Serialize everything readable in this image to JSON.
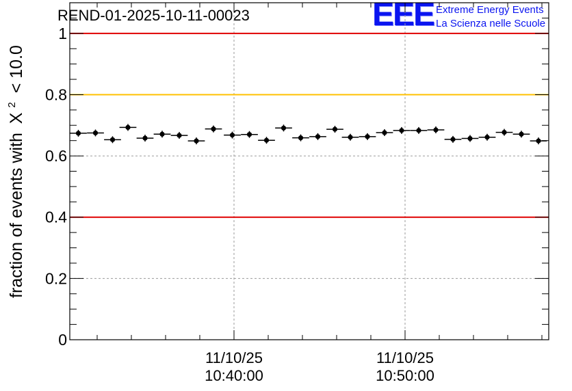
{
  "chart_data": {
    "type": "scatter",
    "title": "REND-01-2025-10-11-00023",
    "ylabel_prefix": "fraction of events with",
    "ylabel_symbol": "X",
    "ylabel_sup": "2",
    "ylabel_suffix": "< 10.0",
    "ylim": [
      0,
      1.1
    ],
    "yticks": [
      {
        "value": 0,
        "label": "0"
      },
      {
        "value": 0.2,
        "label": "0.2"
      },
      {
        "value": 0.4,
        "label": "0.4"
      },
      {
        "value": 0.6,
        "label": "0.6"
      },
      {
        "value": 0.8,
        "label": "0.8"
      },
      {
        "value": 1.0,
        "label": "1"
      }
    ],
    "xlim_minutes": [
      -9.6,
      18.4
    ],
    "x_unit": "minutes relative to 10:40:00",
    "xticks": [
      {
        "value": 0,
        "date": "11/10/25",
        "time": "10:40:00"
      },
      {
        "value": 10,
        "date": "11/10/25",
        "time": "10:50:00"
      }
    ],
    "grid": "dashed",
    "bin_width_minutes": 0.99,
    "reference_lines": [
      {
        "value": 1.0,
        "color": "#e00000"
      },
      {
        "value": 0.8,
        "color": "#ffc000"
      },
      {
        "value": 0.4,
        "color": "#e00000"
      }
    ],
    "x": [
      -9.1,
      -8.1,
      -7.1,
      -6.2,
      -5.2,
      -4.2,
      -3.2,
      -2.2,
      -1.2,
      -0.1,
      0.9,
      1.9,
      2.9,
      3.9,
      4.9,
      5.9,
      6.8,
      7.8,
      8.8,
      9.8,
      10.8,
      11.8,
      12.8,
      13.8,
      14.8,
      15.8,
      16.8,
      17.8
    ],
    "y": [
      0.674,
      0.675,
      0.653,
      0.693,
      0.658,
      0.671,
      0.667,
      0.649,
      0.688,
      0.668,
      0.67,
      0.651,
      0.691,
      0.659,
      0.663,
      0.687,
      0.661,
      0.663,
      0.676,
      0.683,
      0.683,
      0.685,
      0.654,
      0.657,
      0.661,
      0.677,
      0.671,
      0.649
    ]
  },
  "logo": {
    "mark": "EEE",
    "line1": "Extreme Energy Events",
    "line2": "La Scienza nelle Scuole"
  },
  "colors": {
    "grid": "#9a9a9a",
    "marker": "#000000",
    "logo": "#0a14f0"
  }
}
